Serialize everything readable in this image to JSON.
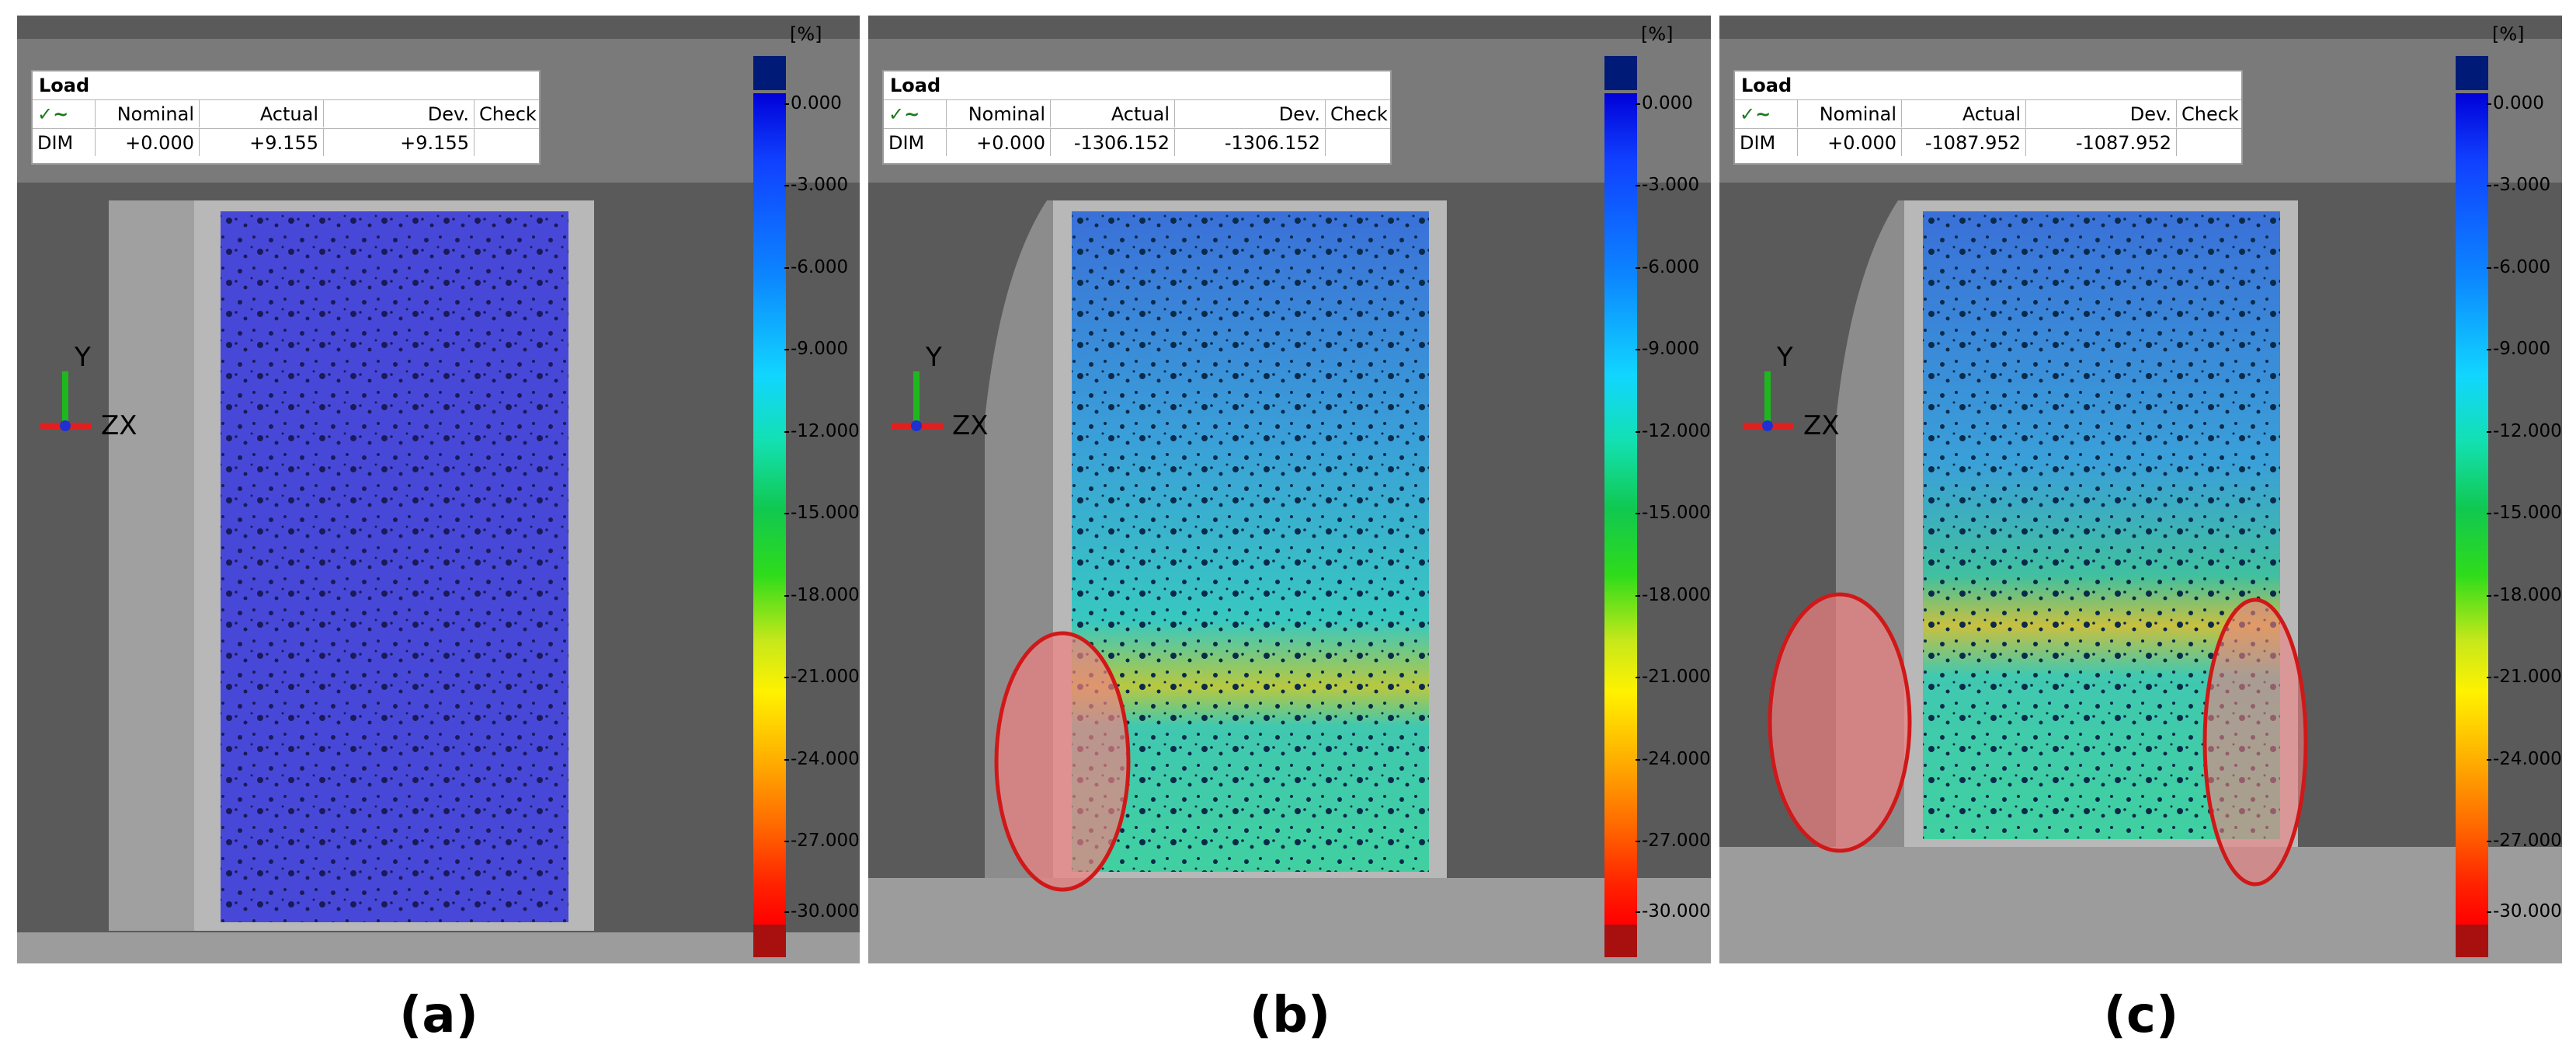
{
  "panels": [
    {
      "id": "a",
      "label": "(a)",
      "load_table": {
        "title": "Load",
        "headers": [
          "",
          "Nominal",
          "Actual",
          "Dev.",
          "Check"
        ],
        "row": {
          "name": "DIM",
          "nominal": "+0.000",
          "actual": "+9.155",
          "dev": "+9.155",
          "check": ""
        }
      },
      "axis": {
        "y": "Y",
        "zx": "ZX"
      },
      "highlighted_regions": 0
    },
    {
      "id": "b",
      "label": "(b)",
      "load_table": {
        "title": "Load",
        "headers": [
          "",
          "Nominal",
          "Actual",
          "Dev.",
          "Check"
        ],
        "row": {
          "name": "DIM",
          "nominal": "+0.000",
          "actual": "-1306.152",
          "dev": "-1306.152",
          "check": ""
        }
      },
      "axis": {
        "y": "Y",
        "zx": "ZX"
      },
      "highlighted_regions": 1
    },
    {
      "id": "c",
      "label": "(c)",
      "load_table": {
        "title": "Load",
        "headers": [
          "",
          "Nominal",
          "Actual",
          "Dev.",
          "Check"
        ],
        "row": {
          "name": "DIM",
          "nominal": "+0.000",
          "actual": "-1087.952",
          "dev": "-1087.952",
          "check": ""
        }
      },
      "axis": {
        "y": "Y",
        "zx": "ZX"
      },
      "highlighted_regions": 2
    }
  ],
  "colorbar": {
    "unit": "[%]",
    "ticks": [
      "0.000",
      "-3.000",
      "-6.000",
      "-9.000",
      "-12.000",
      "-15.000",
      "-18.000",
      "-21.000",
      "-24.000",
      "-27.000",
      "-30.000"
    ],
    "top_color": "#001a78",
    "bottom_color": "#a81010"
  },
  "colors": {
    "overlay_blue": "#3c3cd8",
    "highlight_ellipse": "#d01818",
    "highlight_fill": "#f08080"
  }
}
